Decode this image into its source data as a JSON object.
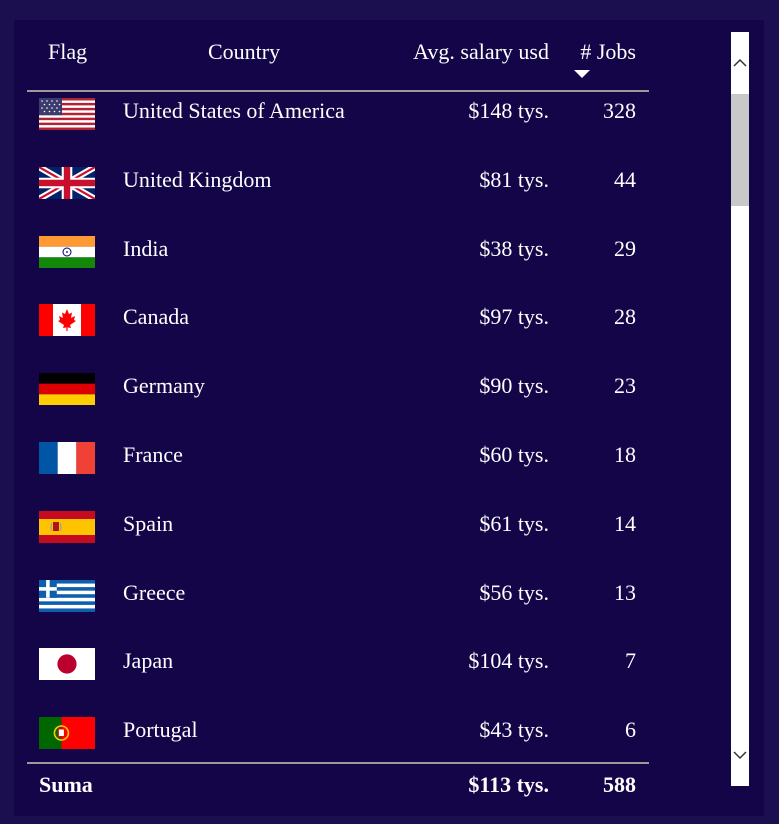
{
  "table": {
    "headers": {
      "flag": "Flag",
      "country": "Country",
      "salary": "Avg. salary usd",
      "jobs": "# Jobs"
    },
    "sort": {
      "column": "jobs",
      "direction": "descending"
    },
    "rows": [
      {
        "flag_icon": "us-flag-icon",
        "country": "United States of America",
        "salary": "$148 tys.",
        "jobs": "328"
      },
      {
        "flag_icon": "uk-flag-icon",
        "country": "United Kingdom",
        "salary": "$81 tys.",
        "jobs": "44"
      },
      {
        "flag_icon": "india-flag-icon",
        "country": "India",
        "salary": "$38 tys.",
        "jobs": "29"
      },
      {
        "flag_icon": "canada-flag-icon",
        "country": "Canada",
        "salary": "$97 tys.",
        "jobs": "28"
      },
      {
        "flag_icon": "germany-flag-icon",
        "country": "Germany",
        "salary": "$90 tys.",
        "jobs": "23"
      },
      {
        "flag_icon": "france-flag-icon",
        "country": "France",
        "salary": "$60 tys.",
        "jobs": "18"
      },
      {
        "flag_icon": "spain-flag-icon",
        "country": "Spain",
        "salary": "$61 tys.",
        "jobs": "14"
      },
      {
        "flag_icon": "greece-flag-icon",
        "country": "Greece",
        "salary": "$56 tys.",
        "jobs": "13"
      },
      {
        "flag_icon": "japan-flag-icon",
        "country": "Japan",
        "salary": "$104 tys.",
        "jobs": "7"
      },
      {
        "flag_icon": "portugal-flag-icon",
        "country": "Portugal",
        "salary": "$43 tys.",
        "jobs": "6"
      }
    ],
    "total": {
      "label": "Suma",
      "salary": "$113 tys.",
      "jobs": "588"
    }
  },
  "colors": {
    "background": "#1b0f4f",
    "panel": "#130548",
    "text": "#ffffff",
    "divider": "#9a9a9a"
  },
  "scrollbar": {
    "up_icon": "chevron-up-icon",
    "down_icon": "chevron-down-icon"
  }
}
